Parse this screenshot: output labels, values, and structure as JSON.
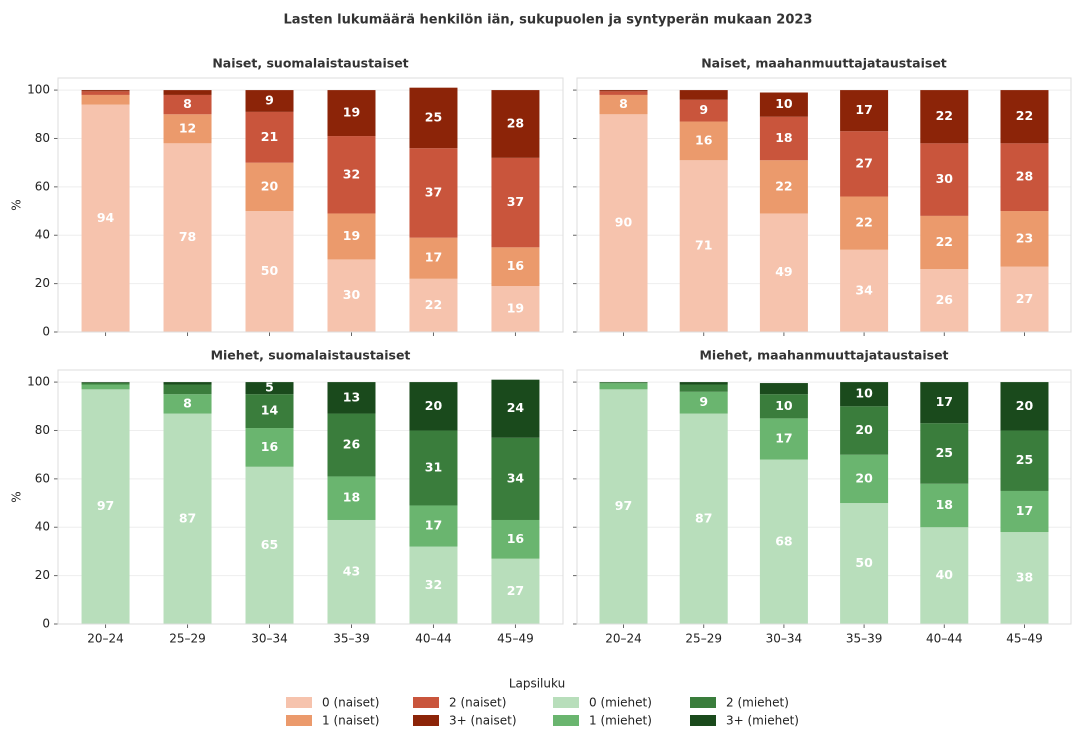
{
  "title": "Lasten lukumäärä henkilön iän, sukupuolen ja syntyperän mukaan 2023",
  "legend_title": "Lapsiluku",
  "chart_data": [
    {
      "type": "bar",
      "stacked": true,
      "title": "Naiset, suomalaistaustaiset",
      "ylabel": "%",
      "categories": [
        "20–24",
        "25–29",
        "30–34",
        "35–39",
        "40–44",
        "45–49"
      ],
      "ylim": [
        0,
        105
      ],
      "yticks": [
        0,
        20,
        40,
        60,
        80,
        100
      ],
      "grid": true,
      "series": [
        {
          "name": "0  (naiset)",
          "color": "#f6c3ad",
          "values": [
            94,
            78,
            50,
            30,
            22,
            19
          ]
        },
        {
          "name": "1  (naiset)",
          "color": "#eb9a6c",
          "values": [
            4,
            12,
            20,
            19,
            17,
            16
          ]
        },
        {
          "name": "2  (naiset)",
          "color": "#c9553c",
          "values": [
            1.5,
            8,
            21,
            32,
            37,
            37
          ]
        },
        {
          "name": "3+  (naiset)",
          "color": "#8c2408",
          "values": [
            0.5,
            2,
            9,
            19,
            25,
            28
          ]
        }
      ]
    },
    {
      "type": "bar",
      "stacked": true,
      "title": "Naiset, maahanmuuttajataustaiset",
      "categories": [
        "20–24",
        "25–29",
        "30–34",
        "35–39",
        "40–44",
        "45–49"
      ],
      "ylim": [
        0,
        105
      ],
      "yticks": [
        0,
        20,
        40,
        60,
        80,
        100
      ],
      "grid": true,
      "series": [
        {
          "name": "0  (naiset)",
          "color": "#f6c3ad",
          "values": [
            90,
            71,
            49,
            34,
            26,
            27
          ]
        },
        {
          "name": "1  (naiset)",
          "color": "#eb9a6c",
          "values": [
            8,
            16,
            22,
            22,
            22,
            23
          ]
        },
        {
          "name": "2  (naiset)",
          "color": "#c9553c",
          "values": [
            1.5,
            9,
            18,
            27,
            30,
            28
          ]
        },
        {
          "name": "3+  (naiset)",
          "color": "#8c2408",
          "values": [
            0.5,
            4,
            10,
            17,
            22,
            22
          ]
        }
      ]
    },
    {
      "type": "bar",
      "stacked": true,
      "title": "Miehet, suomalaistaustaiset",
      "ylabel": "%",
      "categories": [
        "20–24",
        "25–29",
        "30–34",
        "35–39",
        "40–44",
        "45–49"
      ],
      "ylim": [
        0,
        105
      ],
      "yticks": [
        0,
        20,
        40,
        60,
        80,
        100
      ],
      "grid": true,
      "series": [
        {
          "name": "0  (miehet)",
          "color": "#b8debb",
          "values": [
            97,
            87,
            65,
            43,
            32,
            27
          ]
        },
        {
          "name": "1  (miehet)",
          "color": "#6ab56f",
          "values": [
            2,
            8,
            16,
            18,
            17,
            16
          ]
        },
        {
          "name": "2  (miehet)",
          "color": "#3a7d3c",
          "values": [
            0.7,
            4,
            14,
            26,
            31,
            34
          ]
        },
        {
          "name": "3+  (miehet)",
          "color": "#1a4a1c",
          "values": [
            0.3,
            1,
            5,
            13,
            20,
            24
          ]
        }
      ]
    },
    {
      "type": "bar",
      "stacked": true,
      "title": "Miehet, maahanmuuttajataustaiset",
      "categories": [
        "20–24",
        "25–29",
        "30–34",
        "35–39",
        "40–44",
        "45–49"
      ],
      "ylim": [
        0,
        105
      ],
      "yticks": [
        0,
        20,
        40,
        60,
        80,
        100
      ],
      "grid": true,
      "series": [
        {
          "name": "0  (miehet)",
          "color": "#b8debb",
          "values": [
            97,
            87,
            68,
            50,
            40,
            38
          ]
        },
        {
          "name": "1  (miehet)",
          "color": "#6ab56f",
          "values": [
            2.5,
            9,
            17,
            20,
            18,
            17
          ]
        },
        {
          "name": "2  (miehet)",
          "color": "#3a7d3c",
          "values": [
            0.4,
            3,
            10,
            20,
            25,
            25
          ]
        },
        {
          "name": "3+  (miehet)",
          "color": "#1a4a1c",
          "values": [
            0.1,
            1,
            4.6,
            10,
            17,
            20
          ]
        }
      ]
    }
  ]
}
